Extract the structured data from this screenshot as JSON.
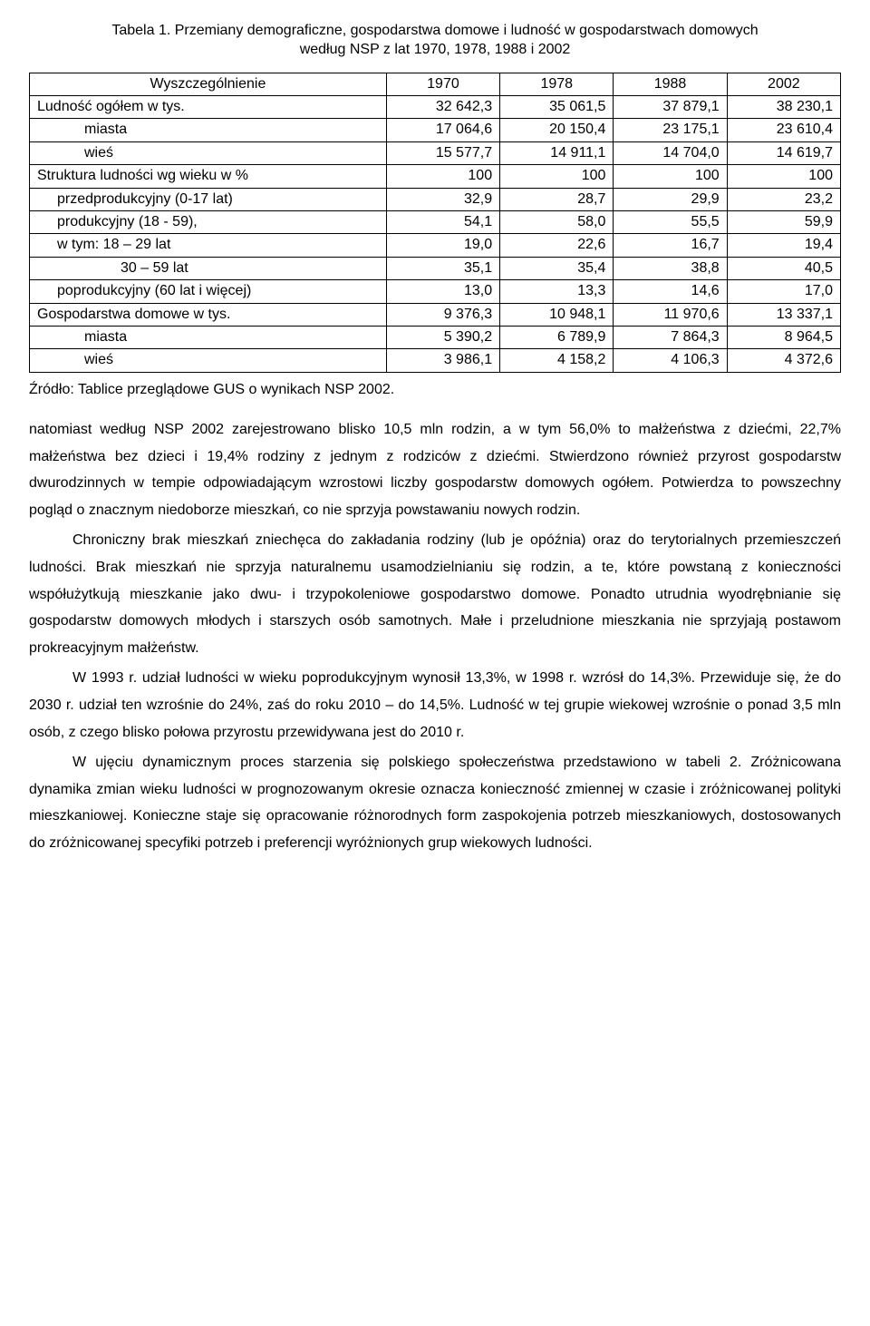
{
  "table": {
    "title_line1": "Tabela 1. Przemiany demograficzne, gospodarstwa domowe i ludność w gospodarstwach domowych",
    "title_line2": "według NSP z lat 1970, 1978, 1988 i 2002",
    "header": [
      "Wyszczególnienie",
      "1970",
      "1978",
      "1988",
      "2002"
    ],
    "rows": [
      {
        "label": "Ludność  ogółem w tys.",
        "indent": 0,
        "v": [
          "32 642,3",
          "35  061,5",
          "37 879,1",
          "38 230,1"
        ]
      },
      {
        "label": "miasta",
        "indent": 1,
        "v": [
          "17 064,6",
          "20 150,4",
          "23 175,1",
          "23 610,4"
        ]
      },
      {
        "label": "wieś",
        "indent": 1,
        "v": [
          "15 577,7",
          "14 911,1",
          "14 704,0",
          "14 619,7"
        ]
      },
      {
        "label": "Struktura ludności wg wieku w %",
        "indent": 0,
        "v": [
          "100",
          "100",
          "100",
          "100"
        ]
      },
      {
        "label": "przedprodukcyjny (0-17 lat)",
        "indent": 2,
        "v": [
          "32,9",
          "28,7",
          "29,9",
          "23,2"
        ]
      },
      {
        "label": "produkcyjny        (18 - 59),",
        "indent": 2,
        "v": [
          "54,1",
          "58,0",
          "55,5",
          "59,9"
        ]
      },
      {
        "label": "w tym:     18 – 29 lat",
        "indent": 2,
        "v": [
          "19,0",
          "22,6",
          "16,7",
          "19,4"
        ]
      },
      {
        "label": "30 – 59 lat",
        "indent": 4,
        "v": [
          "35,1",
          "35,4",
          "38,8",
          "40,5"
        ]
      },
      {
        "label": "poprodukcyjny (60 lat  i więcej)",
        "indent": 2,
        "v": [
          "13,0",
          "13,3",
          "14,6",
          "17,0"
        ]
      },
      {
        "label": "Gospodarstwa domowe w tys.",
        "indent": 0,
        "v": [
          "9 376,3",
          "10 948,1",
          "11 970,6",
          "13 337,1"
        ]
      },
      {
        "label": "miasta",
        "indent": 1,
        "v": [
          "5 390,2",
          "6 789,9",
          "7 864,3",
          "8 964,5"
        ]
      },
      {
        "label": "wieś",
        "indent": 1,
        "v": [
          "3 986,1",
          "4 158,2",
          "4 106,3",
          "4 372,6"
        ]
      }
    ]
  },
  "cite": "Źródło: Tablice przeglądowe GUS o wynikach NSP 2002.",
  "paragraphs": [
    "natomiast według NSP 2002 zarejestrowano blisko 10,5 mln rodzin, a w tym 56,0% to małżeństwa  z  dziećmi,  22,7%  małżeństwa  bez  dzieci  i  19,4%  rodziny  z  jednym z rodziców  z  dziećmi.  Stwierdzono  również  przyrost  gospodarstw  dwurodzinnych w tempie    odpowiadającym    wzrostowi    liczby    gospodarstw    domowych    ogółem. Potwierdza to powszechny pogląd o znacznym niedoborze mieszkań, co nie sprzyja powstawaniu nowych rodzin.",
    "Chroniczny brak mieszkań zniechęca do zakładania rodziny (lub je opóźnia) oraz   do   terytorialnych   przemieszczeń   ludności.   Brak   mieszkań   nie   sprzyja naturalnemu usamodzielnianiu  się  rodzin,  a  te,  które  powstaną  z  konieczności współużytkują  mieszkanie  jako  dwu-  i  trzypokoleniowe  gospodarstwo  domowe. Ponadto  utrudnia  wyodrębnianie  się  gospodarstw  domowych  młodych  i  starszych osób samotnych.      Małe i    przeludnione    mieszkania    nie    sprzyjają    postawom prokreacyjnym małżeństw.",
    "W 1993 r.  udział ludności w wieku poprodukcyjnym wynosił 13,3%, w 1998 r. wzrósł  do  14,3%.  Przewiduje  się,  że  do  2030  r.  udział  ten  wzrośnie  do  24%, zaś do roku  2010  –  do  14,5%.  Ludność  w  tej  grupie  wiekowej  wzrośnie  o  ponad 3,5 mln osób, z czego blisko połowa przyrostu przewidywana jest do 2010 r.",
    "W ujęciu dynamicznym proces starzenia się polskiego społeczeństwa przedstawiono w tabeli 2.  Zróżnicowana dynamika zmian wieku ludności w prognozowanym okresie oznacza  konieczność  zmiennej  w  czasie  i  zróżnicowanej  polityki  mieszkaniowej. Konieczne   staje   się   opracowanie   różnorodnych   form   zaspokojenia   potrzeb mieszkaniowych,  dostosowanych  do  zróżnicowanej  specyfiki  potrzeb  i  preferencji wyróżnionych grup wiekowych ludności."
  ],
  "para_indent": [
    false,
    true,
    true,
    true
  ]
}
